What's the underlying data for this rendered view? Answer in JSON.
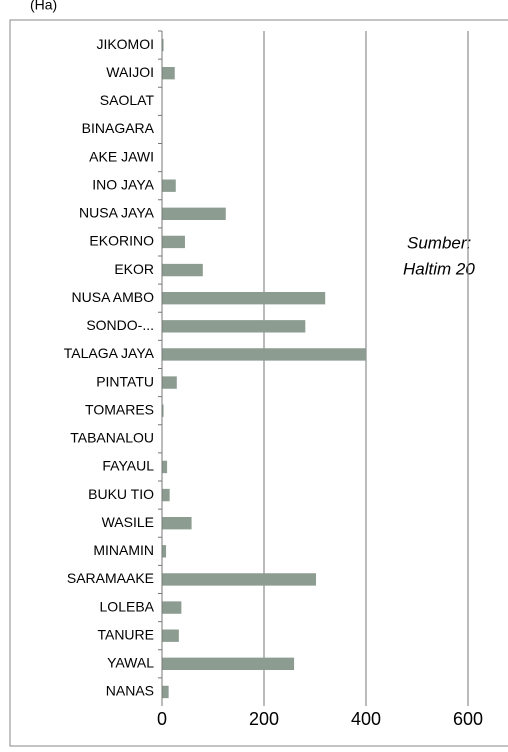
{
  "chart_data": {
    "type": "bar",
    "orientation": "horizontal",
    "title": "(Ha)",
    "annotations": [
      "Sumber:",
      "Haltim 20"
    ],
    "categories": [
      "JIKOMOI",
      "WAIJOI",
      "SAOLAT",
      "BINAGARA",
      "AKE JAWI",
      "INO JAYA",
      "NUSA JAYA",
      "EKORINO",
      "EKOR",
      "NUSA AMBO",
      "SONDO-...",
      "TALAGA JAYA",
      "PINTATU",
      "TOMARES",
      "TABANALOU",
      "FAYAUL",
      "BUKU TIO",
      "WASILE",
      "MINAMIN",
      "SARAMAAKE",
      "LOLEBA",
      "TANURE",
      "YAWAL",
      "NANAS"
    ],
    "values": [
      3,
      25,
      0,
      0,
      0,
      27,
      125,
      45,
      80,
      320,
      281,
      400,
      29,
      3,
      0,
      10,
      15,
      58,
      8,
      302,
      38,
      33,
      259,
      13
    ],
    "color": "#8c9c90",
    "xlim": [
      0,
      600
    ],
    "xticks": [
      0,
      200,
      400,
      600
    ],
    "grid": true
  }
}
